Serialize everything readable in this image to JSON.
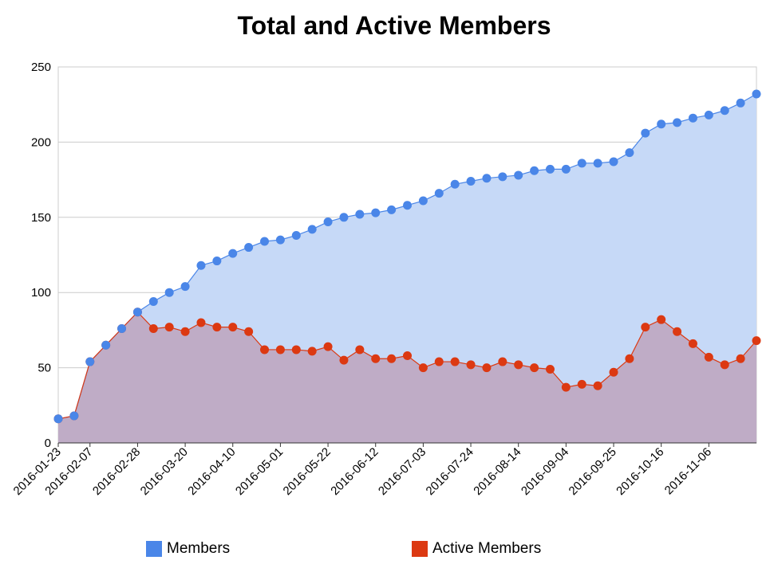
{
  "chart_data": {
    "type": "area",
    "title": "Total and Active Members",
    "xlabel": "",
    "ylabel": "",
    "ylim": [
      0,
      250
    ],
    "y_ticks": [
      0,
      50,
      100,
      150,
      200,
      250
    ],
    "grid": true,
    "legend_position": "bottom",
    "x_tick_labels": [
      "2016-01-23",
      "2016-02-07",
      "2016-02-28",
      "2016-03-20",
      "2016-04-10",
      "2016-05-01",
      "2016-05-22",
      "2016-06-12",
      "2016-07-03",
      "2016-07-24",
      "2016-08-14",
      "2016-09-04",
      "2016-09-25",
      "2016-10-16",
      "2016-11-06"
    ],
    "x_tick_indices": [
      0,
      2,
      5,
      8,
      11,
      14,
      17,
      20,
      23,
      26,
      29,
      32,
      35,
      38,
      41
    ],
    "series": [
      {
        "name": "Members",
        "color": "#4a86e8",
        "fill": "#c6d9f7",
        "values": [
          16,
          18,
          54,
          65,
          76,
          87,
          94,
          100,
          104,
          118,
          121,
          126,
          130,
          134,
          135,
          138,
          142,
          147,
          150,
          152,
          153,
          155,
          158,
          161,
          166,
          172,
          174,
          176,
          177,
          178,
          181,
          182,
          182,
          186,
          186,
          187,
          193,
          206,
          212,
          213,
          216,
          218,
          221,
          226,
          232
        ]
      },
      {
        "name": "Active Members",
        "color": "#dc3912",
        "fill": "#bfacc6",
        "values": [
          16,
          18,
          54,
          65,
          76,
          87,
          76,
          77,
          74,
          80,
          77,
          77,
          74,
          62,
          62,
          62,
          61,
          64,
          55,
          62,
          56,
          56,
          58,
          50,
          54,
          54,
          52,
          50,
          54,
          52,
          50,
          49,
          37,
          39,
          38,
          47,
          56,
          77,
          82,
          74,
          66,
          57,
          52,
          56,
          68
        ]
      }
    ]
  }
}
